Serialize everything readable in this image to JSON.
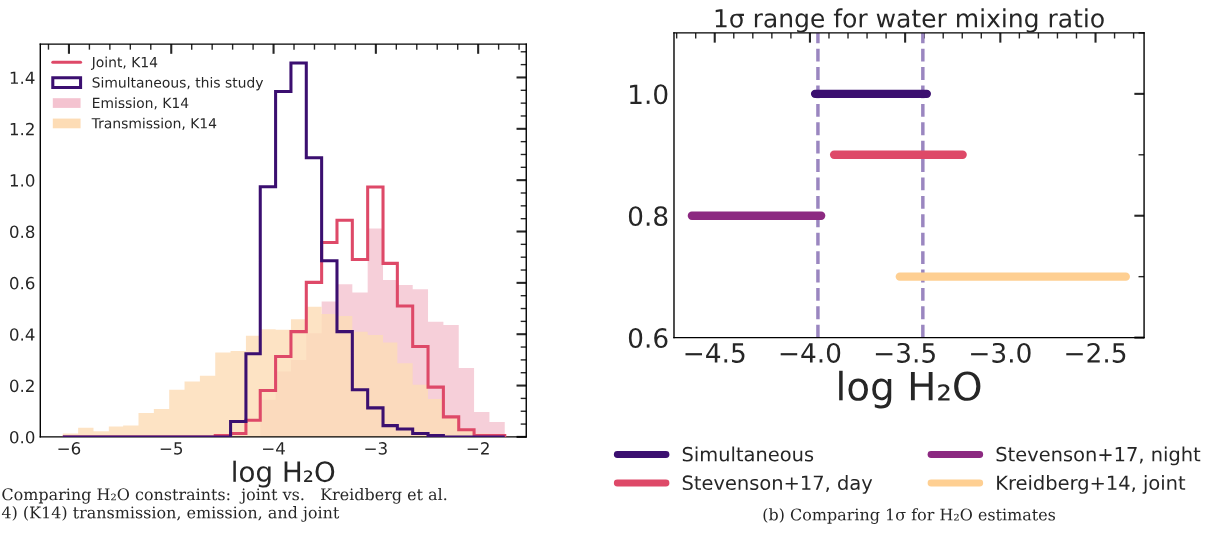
{
  "chart_data": [
    {
      "type": "histogram",
      "xlabel": "log H₂O",
      "legend": "top left",
      "bins": [
        -6.06,
        -5.91,
        -5.76,
        -5.61,
        -5.47,
        -5.32,
        -5.17,
        -5.02,
        -4.87,
        -4.72,
        -4.57,
        -4.42,
        -4.27,
        -4.13,
        -3.98,
        -3.83,
        -3.68,
        -3.53,
        -3.38,
        -3.23,
        -3.08,
        -2.93,
        -2.79,
        -2.64,
        -2.49,
        -2.34,
        -2.19,
        -2.04,
        -1.89,
        -1.74
      ],
      "series": [
        {
          "name": "Joint, K14",
          "line_style": "solid",
          "color": "#de4968",
          "values": [
            0,
            0,
            0,
            0,
            0,
            0,
            0,
            0,
            0,
            0,
            0.005,
            0.013,
            0.065,
            0.181,
            0.313,
            0.41,
            0.602,
            0.757,
            0.844,
            0.691,
            0.973,
            0.676,
            0.51,
            0.352,
            0.194,
            0.078,
            0.028,
            0.005,
            0.005
          ]
        },
        {
          "name": "Simultaneous, this study",
          "line_style": "solid",
          "color": "#3b0f70",
          "values": [
            0,
            0,
            0,
            0,
            0,
            0,
            0,
            0,
            0,
            0,
            0,
            0.06,
            0.324,
            0.974,
            1.345,
            1.456,
            1.087,
            0.686,
            0.41,
            0.184,
            0.113,
            0.044,
            0.031,
            0.013,
            0.005,
            0,
            0,
            0,
            0
          ]
        },
        {
          "name": "Emission, K14",
          "color": "#f4c3d0",
          "values": [
            0,
            0,
            0,
            0,
            0,
            0,
            0,
            0,
            0,
            0,
            0,
            0,
            0,
            0.145,
            0.255,
            0.3,
            0.404,
            0.527,
            0.595,
            0.562,
            0.812,
            0.611,
            0.592,
            0.575,
            0.449,
            0.436,
            0.268,
            0.097,
            0.058
          ]
        },
        {
          "name": "Transmission, K14",
          "color": "#fddcb5",
          "values": [
            0.013,
            0.036,
            0.022,
            0.041,
            0.044,
            0.093,
            0.109,
            0.184,
            0.216,
            0.238,
            0.329,
            0.335,
            0.394,
            0.419,
            0.417,
            0.458,
            0.507,
            0.479,
            0.471,
            0.41,
            0.397,
            0.368,
            0.287,
            0.203,
            0.148,
            0.074,
            0.031,
            0.013,
            0.005
          ]
        }
      ],
      "xlim": [
        -6.28,
        -1.53
      ],
      "ylim": [
        0,
        1.53
      ],
      "xticks": [
        {
          "value": -6,
          "label": "−6"
        },
        {
          "value": -5,
          "label": "−5"
        },
        {
          "value": -4,
          "label": "−4"
        },
        {
          "value": -3,
          "label": "−3"
        },
        {
          "value": -2,
          "label": "−2"
        }
      ],
      "yticks": [
        {
          "value": 0,
          "label": "0.0"
        },
        {
          "value": 0.2,
          "label": "0.2"
        },
        {
          "value": 0.4,
          "label": "0.4"
        },
        {
          "value": 0.6,
          "label": "0.6"
        },
        {
          "value": 0.8,
          "label": "0.8"
        },
        {
          "value": 1.0,
          "label": "1.0"
        },
        {
          "value": 1.2,
          "label": "1.2"
        },
        {
          "value": 1.4,
          "label": "1.4"
        }
      ],
      "annotations": [
        "Comparing H₂O constraints:  joint vs.   Kreidberg et al.\n4) (K14) transmission, emission, and joint"
      ]
    },
    {
      "type": "line",
      "title": "1σ range for water mixing ratio",
      "xlabel": "log H₂O",
      "legend": "bottom",
      "series": [
        {
          "name": "Simultaneous",
          "color": "#3b0f70",
          "x": [
            -3.973,
            -3.386
          ],
          "values": [
            1.0,
            1.0
          ]
        },
        {
          "name": "Stevenson+17, day",
          "color": "#de4968",
          "x": [
            -3.873,
            -3.198
          ],
          "values": [
            0.9,
            0.9
          ]
        },
        {
          "name": "Stevenson+17, night",
          "color": "#8c2981",
          "x": [
            -4.62,
            -3.941
          ],
          "values": [
            0.8,
            0.8
          ]
        },
        {
          "name": "Kreidberg+14, joint",
          "color": "#fecf92",
          "x": [
            -3.528,
            -2.341
          ],
          "values": [
            0.7,
            0.7
          ]
        }
      ],
      "ref_lines": [
        {
          "axis": "x",
          "value": -3.958,
          "color": "#9a86c0",
          "line_style": "dashed"
        },
        {
          "axis": "x",
          "value": -3.407,
          "color": "#9a86c0",
          "line_style": "dashed"
        }
      ],
      "xlim": [
        -4.714,
        -2.245
      ],
      "ylim": [
        0.6,
        1.1
      ],
      "xticks": [
        {
          "value": -4.5,
          "label": "−4.5"
        },
        {
          "value": -4.0,
          "label": "−4.0"
        },
        {
          "value": -3.5,
          "label": "−3.5"
        },
        {
          "value": -3.0,
          "label": "−3.0"
        },
        {
          "value": -2.5,
          "label": "−2.5"
        }
      ],
      "yticks": [
        {
          "value": 0.6,
          "label": "0.6"
        },
        {
          "value": 0.8,
          "label": "0.8"
        },
        {
          "value": 1.0,
          "label": "1.0"
        }
      ],
      "annotations": [
        "(b) Comparing 1σ for H₂O estimates"
      ]
    }
  ]
}
